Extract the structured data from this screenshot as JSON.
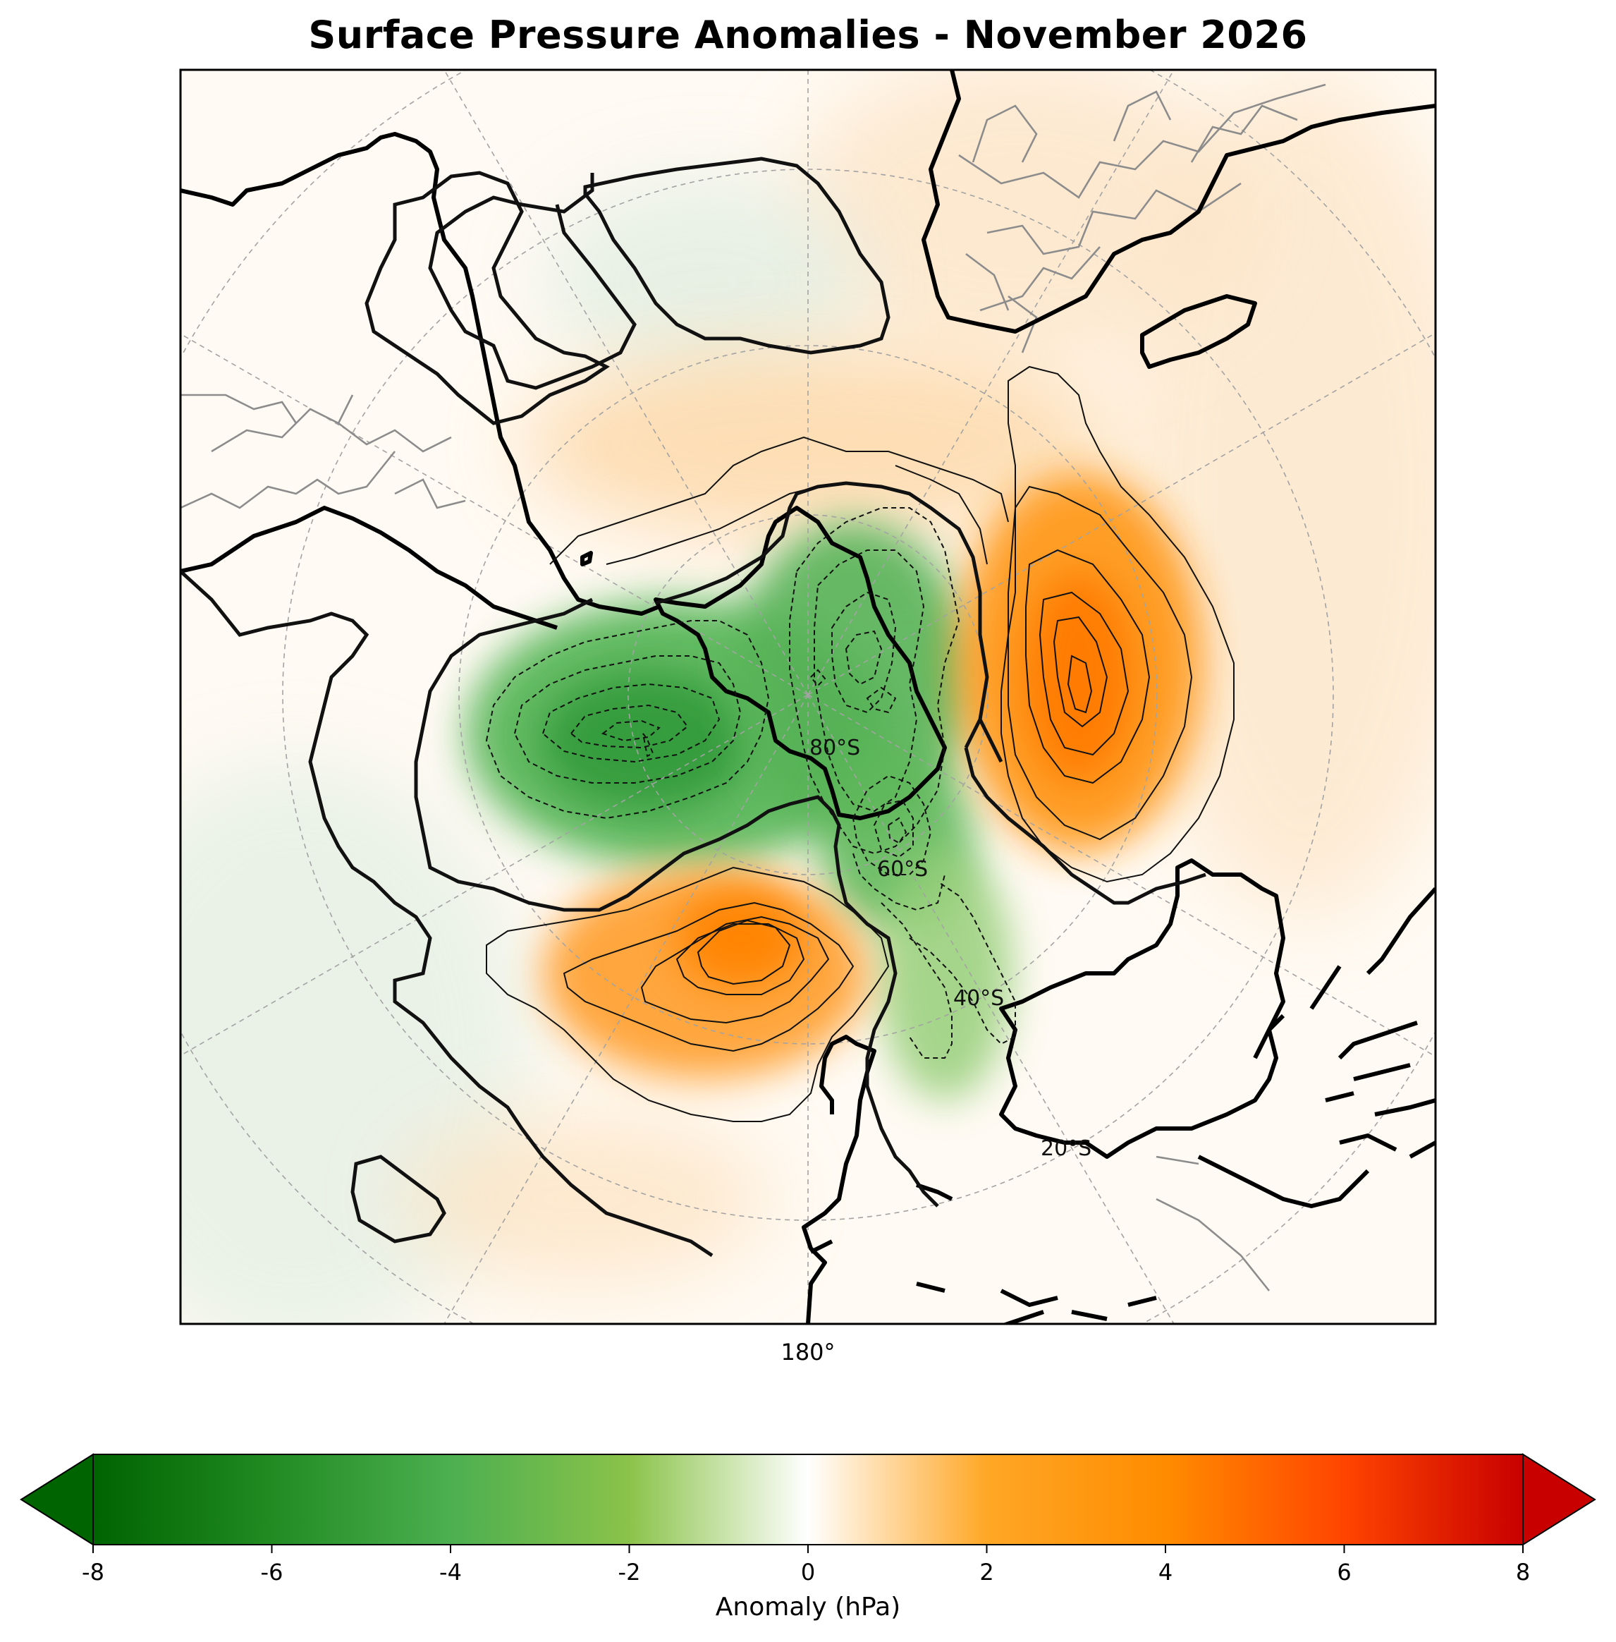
{
  "title": "Surface Pressure Anomalies - November 2026",
  "map": {
    "projection": "south-polar-stereographic",
    "colormap": [
      "#006400",
      "#228B22",
      "#4CAF50",
      "#8BC34A",
      "#FFFFFF",
      "#FFA726",
      "#FF8C00",
      "#FF4500",
      "#C80000"
    ],
    "colors": {
      "land_outline": "#000000",
      "borders": "#808080",
      "gridlines": "#9E9E9E",
      "negative": "#4CAF50",
      "positive": "#FF8C00"
    },
    "gridlines": true,
    "longitude_labels": [
      "180°"
    ],
    "latitude_labels": [
      "80°S",
      "60°S",
      "40°S",
      "20°S"
    ],
    "contour_style": {
      "negative": "dashed",
      "positive": "solid",
      "zero": "thick solid"
    },
    "anomaly_centers": [
      {
        "name": "low",
        "value": -6.0
      },
      {
        "name": "low-antarctic",
        "value": -5.0
      },
      {
        "name": "low-tail",
        "value": -4.5
      },
      {
        "name": "low-tail-south",
        "value": -3.0
      },
      {
        "name": "high-east",
        "value": 4.8
      },
      {
        "name": "high-south",
        "value": 4.5
      }
    ]
  },
  "colorbar": {
    "label": "Anomaly (hPa)",
    "min": -8,
    "max": 8,
    "ticks": [
      "-8",
      "-6",
      "-4",
      "-2",
      "0",
      "2",
      "4",
      "6",
      "8"
    ],
    "extend": "both"
  }
}
